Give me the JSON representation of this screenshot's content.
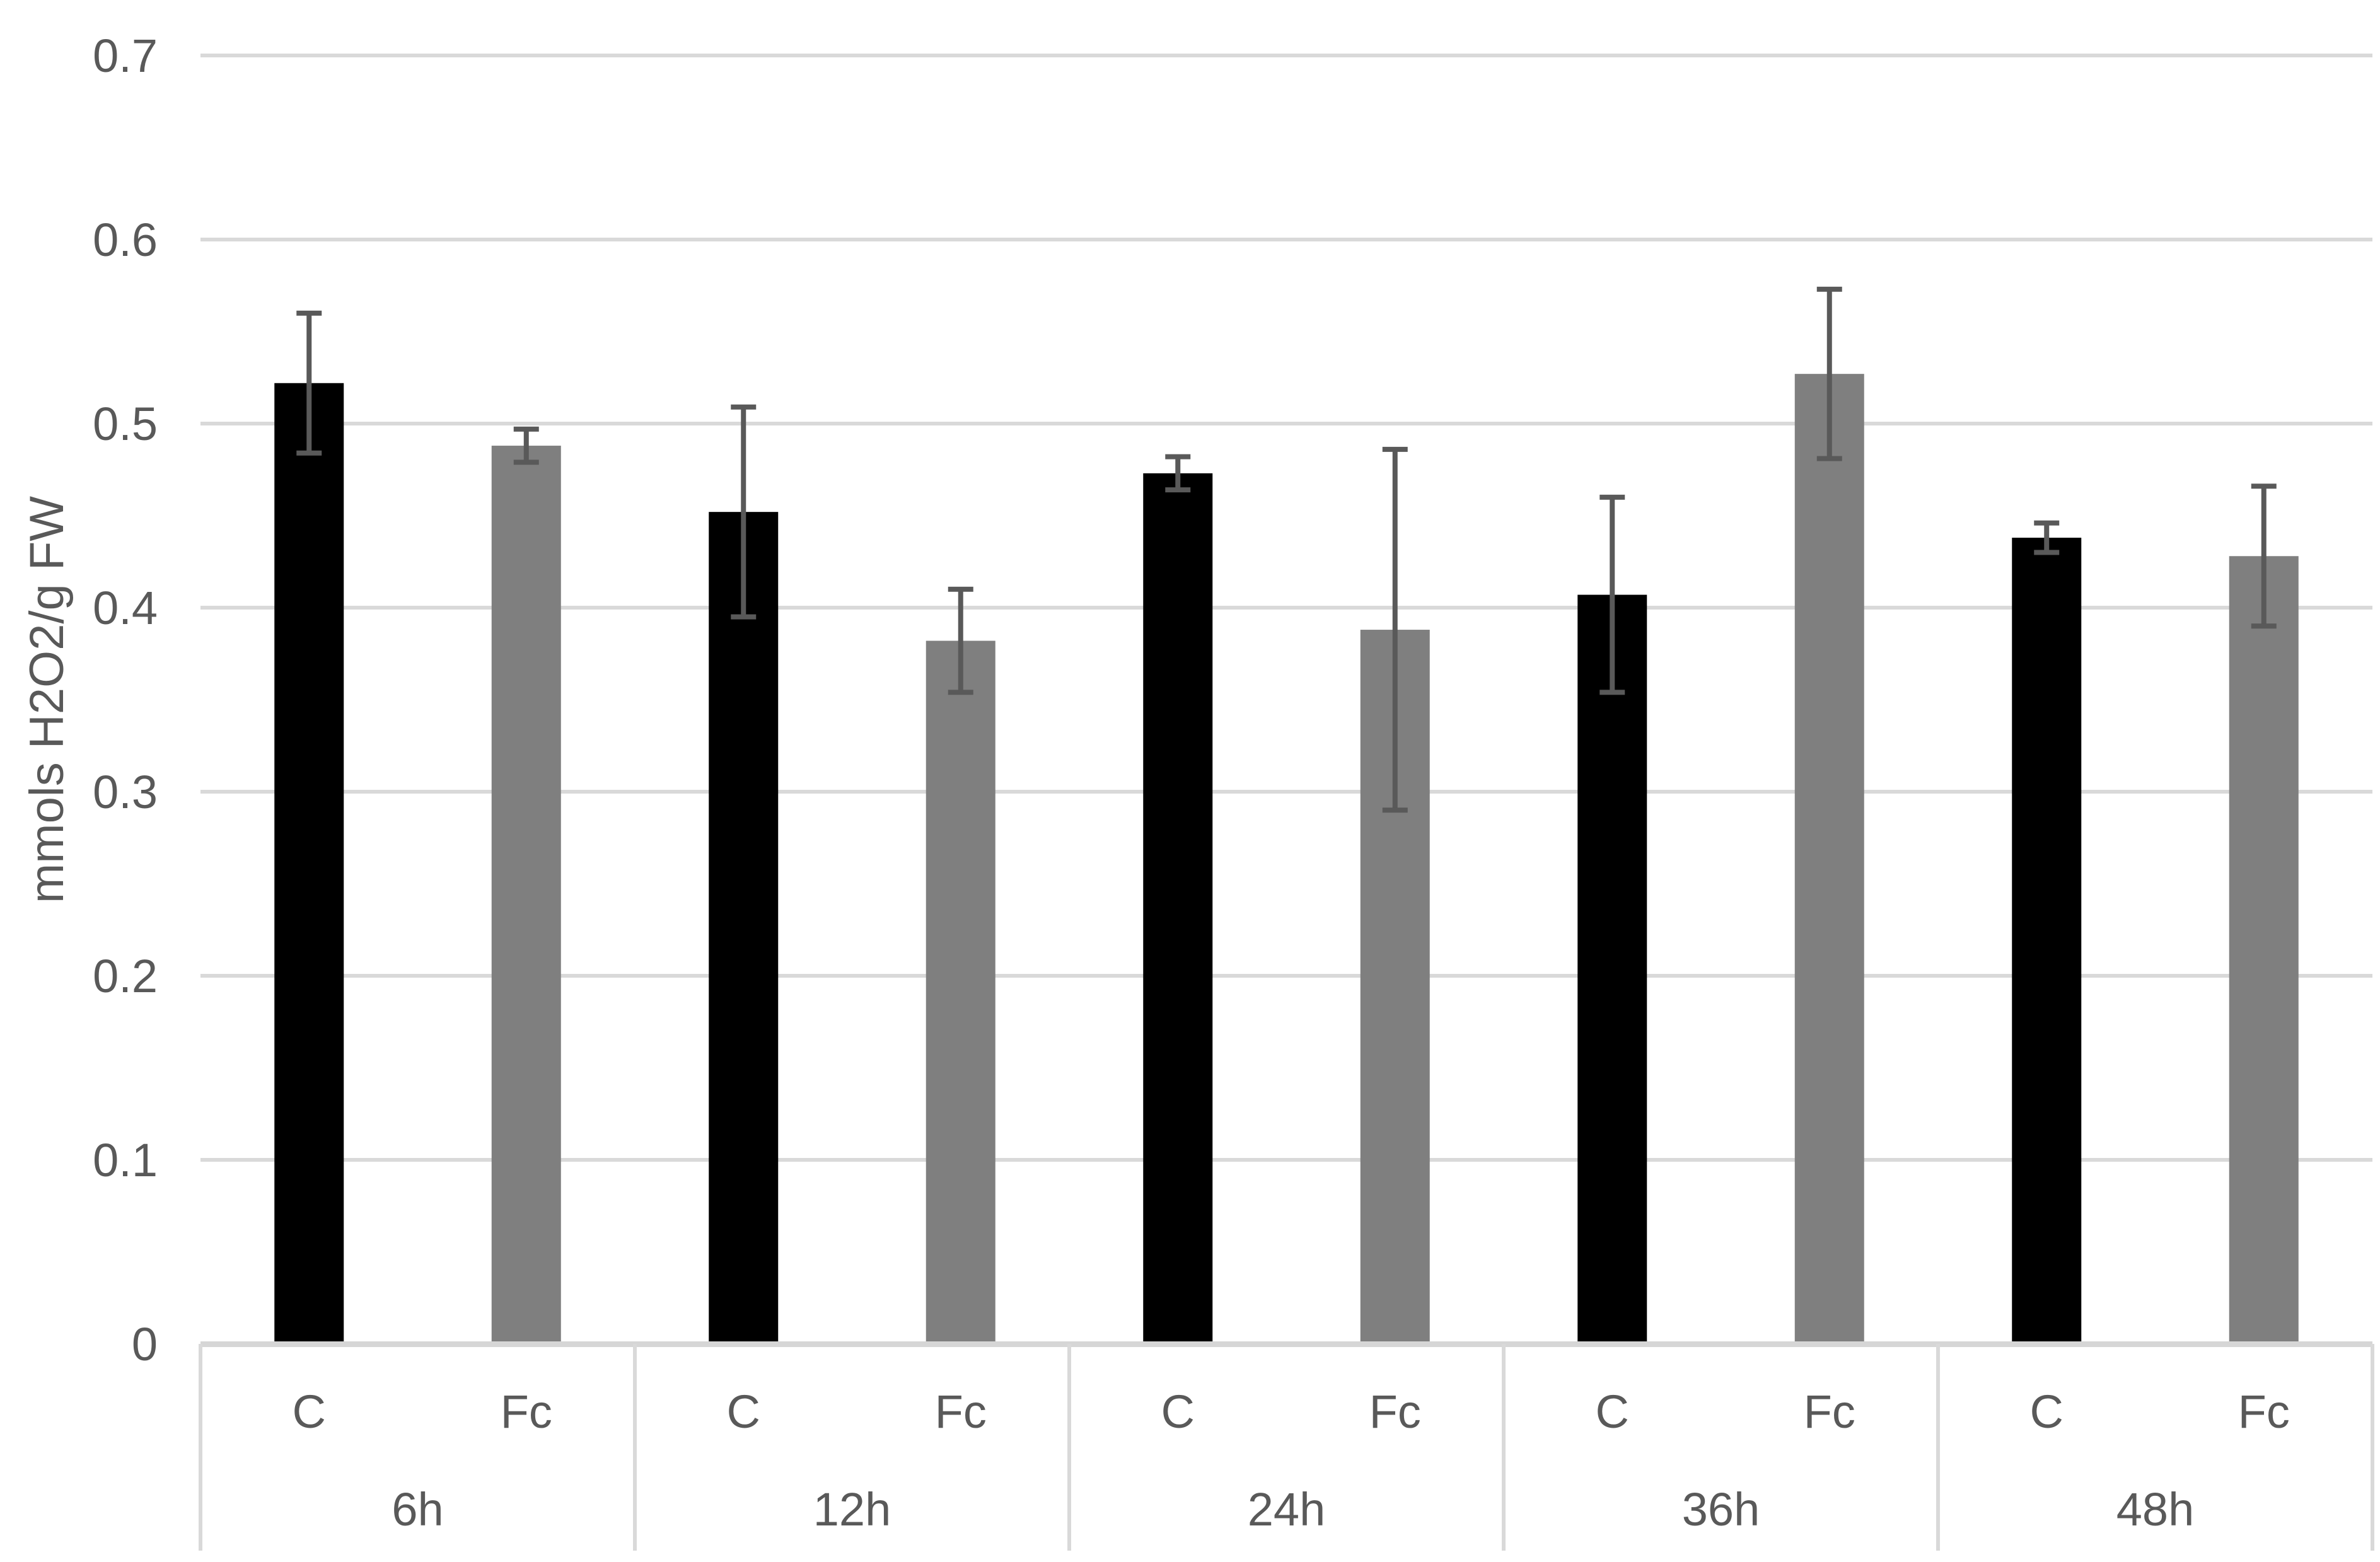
{
  "chart_data": {
    "type": "bar",
    "title": "",
    "xlabel": "",
    "ylabel": "mmols H2O2/g FW",
    "ylim": [
      0,
      0.7
    ],
    "ytick_step": 0.1,
    "ytick_labels": [
      "0",
      "0.1",
      "0.2",
      "0.3",
      "0.4",
      "0.5",
      "0.6",
      "0.7"
    ],
    "grid": "horizontal",
    "legend_position": "none",
    "categories": [
      "6h",
      "12h",
      "24h",
      "36h",
      "48h"
    ],
    "subcategory_labels": [
      "C",
      "Fc"
    ],
    "series": [
      {
        "name": "C",
        "color": "#000000",
        "values": [
          0.522,
          0.452,
          0.473,
          0.407,
          0.438
        ],
        "errors": [
          0.038,
          0.057,
          0.009,
          0.053,
          0.008
        ]
      },
      {
        "name": "Fc",
        "color": "#7F7F7F",
        "values": [
          0.488,
          0.382,
          0.388,
          0.527,
          0.428
        ],
        "errors": [
          0.009,
          0.028,
          0.098,
          0.046,
          0.038
        ]
      }
    ],
    "colors": {
      "bar_c": "#000000",
      "bar_fc": "#7F7F7F",
      "error_bar": "#595959",
      "gridline": "#D9D9D9",
      "axis_line": "#D6D6D6",
      "axis_text": "#595959",
      "background": "#FFFFFF"
    }
  }
}
